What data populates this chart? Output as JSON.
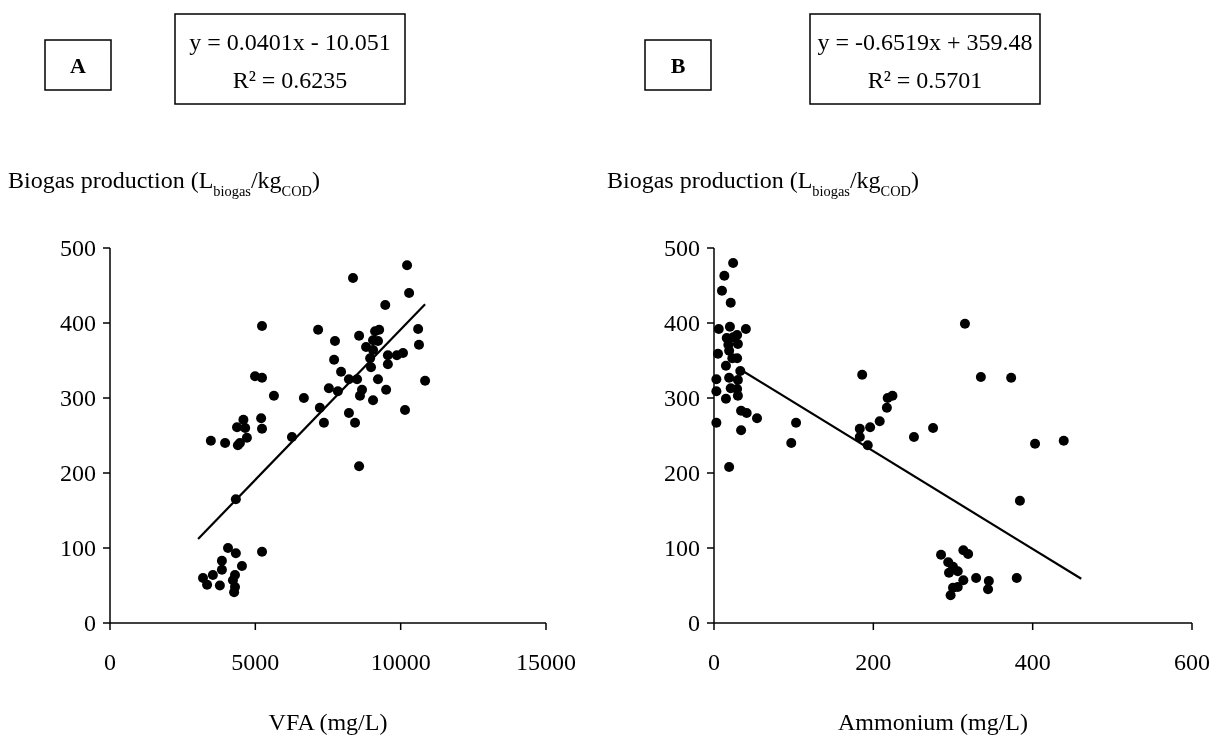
{
  "chart_data": [
    {
      "type": "scatter",
      "title": "A",
      "annotations": [
        "y = 0.0401x - 10.051",
        "R² = 0.6235"
      ],
      "ylabel": "Biogas production (L$_{biogas}$/kg$_{COD}$)",
      "xlabel": "VFA (mg/L)",
      "xlim": [
        0,
        15000
      ],
      "xticks": [
        0,
        5000,
        10000,
        15000
      ],
      "ylim": [
        0,
        500
      ],
      "yticks": [
        0,
        100,
        200,
        300,
        400,
        500
      ],
      "grid": false,
      "marker": "circle",
      "series": [
        {
          "color": "#000000",
          "x": [
            10220,
            8360,
            10290,
            9470,
            5230,
            7160,
            7740,
            8570,
            9120,
            9260,
            10600,
            10630,
            9050,
            9220,
            8810,
            9050,
            7710,
            8950,
            9560,
            9870,
            10080,
            8980,
            9560,
            7950,
            8220,
            8500,
            9220,
            4990,
            5230,
            10840,
            5640,
            6670,
            7530,
            7840,
            8670,
            8600,
            9050,
            9500,
            8220,
            10150,
            7220,
            8430,
            7360,
            6260,
            5200,
            5230,
            4590,
            4370,
            4650,
            4710,
            4470,
            4400,
            3470,
            3960,
            8570,
            4330,
            5230,
            4060,
            4330,
            3850,
            4540,
            3850,
            3540,
            3200,
            3340,
            3780,
            4300,
            4230,
            4300,
            4270
          ],
          "values": [
            477,
            460,
            440,
            424,
            396,
            391,
            376,
            383,
            389,
            391,
            392,
            371,
            377,
            376,
            368,
            364,
            351,
            353,
            357,
            357,
            360,
            341,
            345,
            335,
            325,
            325,
            325,
            329,
            327,
            323,
            303,
            300,
            313,
            309,
            311,
            303,
            297,
            311,
            280,
            284,
            287,
            267,
            267,
            248,
            273,
            259,
            271,
            261,
            260,
            247,
            240,
            237,
            243,
            240,
            209,
            165,
            95,
            100,
            93,
            83,
            76,
            71,
            64,
            60,
            51,
            50,
            64,
            57,
            48,
            41
          ]
        },
        {
          "type": "line",
          "color": "#000000",
          "marker": "none",
          "line_style": "solid",
          "x": [
            3030,
            10840
          ],
          "values": [
            112,
            425
          ]
        }
      ]
    },
    {
      "type": "scatter",
      "title": "B",
      "annotations": [
        "y = -0.6519x + 359.48",
        "R² = 0.5701"
      ],
      "ylabel": "Biogas production (L$_{biogas}$/kg$_{COD}$)",
      "xlabel": "Ammonium (mg/L)",
      "xlim": [
        0,
        600
      ],
      "xticks": [
        0,
        200,
        400,
        600
      ],
      "ylim": [
        0,
        500
      ],
      "yticks": [
        0,
        100,
        200,
        300,
        400,
        500
      ],
      "grid": false,
      "marker": "circle",
      "series": [
        {
          "color": "#000000",
          "x": [
            24,
            13,
            10,
            21,
            6,
            20,
            40,
            16,
            24,
            29,
            18,
            30,
            5,
            19,
            29,
            23,
            15,
            33,
            3,
            19,
            30,
            3,
            21,
            29,
            30,
            15,
            34,
            41,
            54,
            3,
            34,
            103,
            97,
            19,
            315,
            186,
            335,
            373,
            224,
            218,
            217,
            208,
            183,
            196,
            183,
            193,
            251,
            275,
            403,
            439,
            384,
            313,
            319,
            285,
            294,
            300,
            306,
            295,
            313,
            329,
            345,
            344,
            380,
            300,
            306,
            297
          ],
          "values": [
            480,
            463,
            443,
            427,
            392,
            395,
            392,
            380,
            381,
            384,
            371,
            372,
            359,
            363,
            353,
            353,
            343,
            336,
            325,
            327,
            324,
            309,
            313,
            312,
            303,
            299,
            283,
            280,
            273,
            267,
            257,
            267,
            240,
            208,
            399,
            331,
            328,
            327,
            303,
            300,
            287,
            269,
            259,
            261,
            248,
            237,
            248,
            260,
            239,
            243,
            163,
            97,
            92,
            91,
            81,
            75,
            69,
            67,
            57,
            60,
            56,
            45,
            60,
            47,
            48,
            37
          ]
        },
        {
          "type": "line",
          "color": "#000000",
          "marker": "none",
          "line_style": "solid",
          "x": [
            33,
            461
          ],
          "values": [
            338,
            59
          ]
        }
      ]
    }
  ]
}
